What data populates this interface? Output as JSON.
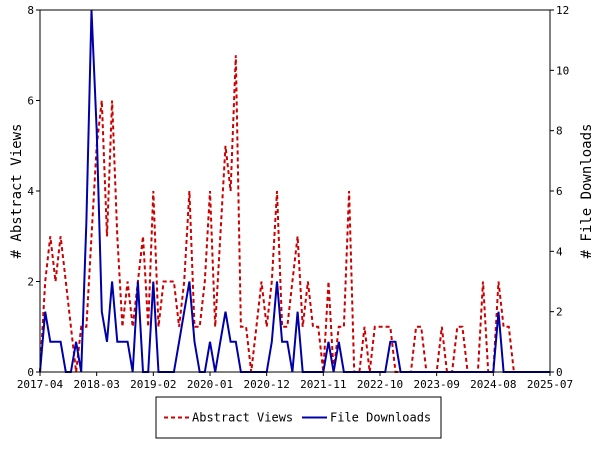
{
  "chart_data": {
    "type": "line",
    "ylabel_left": "# Abstract Views",
    "ylabel_right": "# File Downloads",
    "y_left_lim": [
      0,
      8
    ],
    "y_right_lim": [
      0,
      12
    ],
    "y_left_ticks": [
      0,
      2,
      4,
      6,
      8
    ],
    "y_right_ticks": [
      0,
      2,
      4,
      6,
      8,
      10,
      12
    ],
    "x_ticks": [
      "2017-04",
      "2018-03",
      "2019-02",
      "2020-01",
      "2020-12",
      "2021-11",
      "2022-10",
      "2023-09",
      "2024-08",
      "2025-07"
    ],
    "x_range": [
      "2017-04",
      "2025-07"
    ],
    "grid": false,
    "legend_position": "bottom",
    "series": [
      {
        "name": "Abstract Views",
        "axis": "left",
        "color": "#cc0000",
        "style": "dashed",
        "points": [
          [
            "2017-04",
            0
          ],
          [
            "2017-05",
            2
          ],
          [
            "2017-06",
            3
          ],
          [
            "2017-07",
            2
          ],
          [
            "2017-08",
            3
          ],
          [
            "2017-09",
            2
          ],
          [
            "2017-10",
            1
          ],
          [
            "2017-11",
            0
          ],
          [
            "2017-12",
            1
          ],
          [
            "2018-01",
            1
          ],
          [
            "2018-02",
            3
          ],
          [
            "2018-03",
            5
          ],
          [
            "2018-04",
            6
          ],
          [
            "2018-05",
            3
          ],
          [
            "2018-06",
            6
          ],
          [
            "2018-07",
            3
          ],
          [
            "2018-08",
            1
          ],
          [
            "2018-09",
            2
          ],
          [
            "2018-10",
            1
          ],
          [
            "2018-11",
            2
          ],
          [
            "2018-12",
            3
          ],
          [
            "2019-01",
            1
          ],
          [
            "2019-02",
            4
          ],
          [
            "2019-03",
            1
          ],
          [
            "2019-04",
            2
          ],
          [
            "2019-05",
            2
          ],
          [
            "2019-06",
            2
          ],
          [
            "2019-07",
            1
          ],
          [
            "2019-08",
            2
          ],
          [
            "2019-09",
            4
          ],
          [
            "2019-10",
            1
          ],
          [
            "2019-11",
            1
          ],
          [
            "2019-12",
            2
          ],
          [
            "2020-01",
            4
          ],
          [
            "2020-02",
            1
          ],
          [
            "2020-03",
            3
          ],
          [
            "2020-04",
            5
          ],
          [
            "2020-05",
            4
          ],
          [
            "2020-06",
            7
          ],
          [
            "2020-07",
            1
          ],
          [
            "2020-08",
            1
          ],
          [
            "2020-09",
            0
          ],
          [
            "2020-10",
            1
          ],
          [
            "2020-11",
            2
          ],
          [
            "2020-12",
            1
          ],
          [
            "2021-01",
            2
          ],
          [
            "2021-02",
            4
          ],
          [
            "2021-03",
            1
          ],
          [
            "2021-04",
            1
          ],
          [
            "2021-05",
            2
          ],
          [
            "2021-06",
            3
          ],
          [
            "2021-07",
            1
          ],
          [
            "2021-08",
            2
          ],
          [
            "2021-09",
            1
          ],
          [
            "2021-10",
            1
          ],
          [
            "2021-11",
            0
          ],
          [
            "2021-12",
            2
          ],
          [
            "2022-01",
            0
          ],
          [
            "2022-02",
            1
          ],
          [
            "2022-03",
            1
          ],
          [
            "2022-04",
            4
          ],
          [
            "2022-05",
            0
          ],
          [
            "2022-06",
            0
          ],
          [
            "2022-07",
            1
          ],
          [
            "2022-08",
            0
          ],
          [
            "2022-09",
            1
          ],
          [
            "2022-10",
            1
          ],
          [
            "2022-11",
            1
          ],
          [
            "2022-12",
            1
          ],
          [
            "2023-01",
            0
          ],
          [
            "2023-02",
            0
          ],
          [
            "2023-03",
            0
          ],
          [
            "2023-04",
            0
          ],
          [
            "2023-05",
            1
          ],
          [
            "2023-06",
            1
          ],
          [
            "2023-07",
            0
          ],
          [
            "2023-08",
            0
          ],
          [
            "2023-09",
            0
          ],
          [
            "2023-10",
            1
          ],
          [
            "2023-11",
            0
          ],
          [
            "2023-12",
            0
          ],
          [
            "2024-01",
            1
          ],
          [
            "2024-02",
            1
          ],
          [
            "2024-03",
            0
          ],
          [
            "2024-04",
            0
          ],
          [
            "2024-05",
            0
          ],
          [
            "2024-06",
            2
          ],
          [
            "2024-07",
            0
          ],
          [
            "2024-08",
            0
          ],
          [
            "2024-09",
            2
          ],
          [
            "2024-10",
            1
          ],
          [
            "2024-11",
            1
          ],
          [
            "2024-12",
            0
          ],
          [
            "2025-01",
            0
          ],
          [
            "2025-02",
            0
          ],
          [
            "2025-03",
            0
          ],
          [
            "2025-04",
            0
          ],
          [
            "2025-05",
            0
          ],
          [
            "2025-06",
            0
          ],
          [
            "2025-07",
            0
          ]
        ]
      },
      {
        "name": "File Downloads",
        "axis": "right",
        "color": "#0000aa",
        "style": "solid",
        "points": [
          [
            "2017-04",
            0
          ],
          [
            "2017-05",
            2
          ],
          [
            "2017-06",
            1
          ],
          [
            "2017-07",
            1
          ],
          [
            "2017-08",
            1
          ],
          [
            "2017-09",
            0
          ],
          [
            "2017-10",
            0
          ],
          [
            "2017-11",
            1
          ],
          [
            "2017-12",
            0
          ],
          [
            "2018-01",
            5
          ],
          [
            "2018-02",
            12
          ],
          [
            "2018-03",
            8
          ],
          [
            "2018-04",
            2
          ],
          [
            "2018-05",
            1
          ],
          [
            "2018-06",
            3
          ],
          [
            "2018-07",
            1
          ],
          [
            "2018-08",
            1
          ],
          [
            "2018-09",
            1
          ],
          [
            "2018-10",
            0
          ],
          [
            "2018-11",
            3
          ],
          [
            "2018-12",
            0
          ],
          [
            "2019-01",
            0
          ],
          [
            "2019-02",
            3
          ],
          [
            "2019-03",
            0
          ],
          [
            "2019-04",
            0
          ],
          [
            "2019-05",
            0
          ],
          [
            "2019-06",
            0
          ],
          [
            "2019-07",
            1
          ],
          [
            "2019-08",
            2
          ],
          [
            "2019-09",
            3
          ],
          [
            "2019-10",
            1
          ],
          [
            "2019-11",
            0
          ],
          [
            "2019-12",
            0
          ],
          [
            "2020-01",
            1
          ],
          [
            "2020-02",
            0
          ],
          [
            "2020-03",
            1
          ],
          [
            "2020-04",
            2
          ],
          [
            "2020-05",
            1
          ],
          [
            "2020-06",
            1
          ],
          [
            "2020-07",
            0
          ],
          [
            "2020-08",
            0
          ],
          [
            "2020-09",
            0
          ],
          [
            "2020-10",
            0
          ],
          [
            "2020-11",
            0
          ],
          [
            "2020-12",
            0
          ],
          [
            "2021-01",
            1
          ],
          [
            "2021-02",
            3
          ],
          [
            "2021-03",
            1
          ],
          [
            "2021-04",
            1
          ],
          [
            "2021-05",
            0
          ],
          [
            "2021-06",
            2
          ],
          [
            "2021-07",
            0
          ],
          [
            "2021-08",
            0
          ],
          [
            "2021-09",
            0
          ],
          [
            "2021-10",
            0
          ],
          [
            "2021-11",
            0
          ],
          [
            "2021-12",
            1
          ],
          [
            "2022-01",
            0
          ],
          [
            "2022-02",
            1
          ],
          [
            "2022-03",
            0
          ],
          [
            "2022-04",
            0
          ],
          [
            "2022-05",
            0
          ],
          [
            "2022-06",
            0
          ],
          [
            "2022-07",
            0
          ],
          [
            "2022-08",
            0
          ],
          [
            "2022-09",
            0
          ],
          [
            "2022-10",
            0
          ],
          [
            "2022-11",
            0
          ],
          [
            "2022-12",
            1
          ],
          [
            "2023-01",
            1
          ],
          [
            "2023-02",
            0
          ],
          [
            "2023-03",
            0
          ],
          [
            "2023-04",
            0
          ],
          [
            "2023-05",
            0
          ],
          [
            "2023-06",
            0
          ],
          [
            "2023-07",
            0
          ],
          [
            "2023-08",
            0
          ],
          [
            "2023-09",
            0
          ],
          [
            "2023-10",
            0
          ],
          [
            "2023-11",
            0
          ],
          [
            "2023-12",
            0
          ],
          [
            "2024-01",
            0
          ],
          [
            "2024-02",
            0
          ],
          [
            "2024-03",
            0
          ],
          [
            "2024-04",
            0
          ],
          [
            "2024-05",
            0
          ],
          [
            "2024-06",
            0
          ],
          [
            "2024-07",
            0
          ],
          [
            "2024-08",
            0
          ],
          [
            "2024-09",
            2
          ],
          [
            "2024-10",
            0
          ],
          [
            "2024-11",
            0
          ],
          [
            "2024-12",
            0
          ],
          [
            "2025-01",
            0
          ],
          [
            "2025-02",
            0
          ],
          [
            "2025-03",
            0
          ],
          [
            "2025-04",
            0
          ],
          [
            "2025-05",
            0
          ],
          [
            "2025-06",
            0
          ],
          [
            "2025-07",
            0
          ]
        ]
      }
    ]
  }
}
